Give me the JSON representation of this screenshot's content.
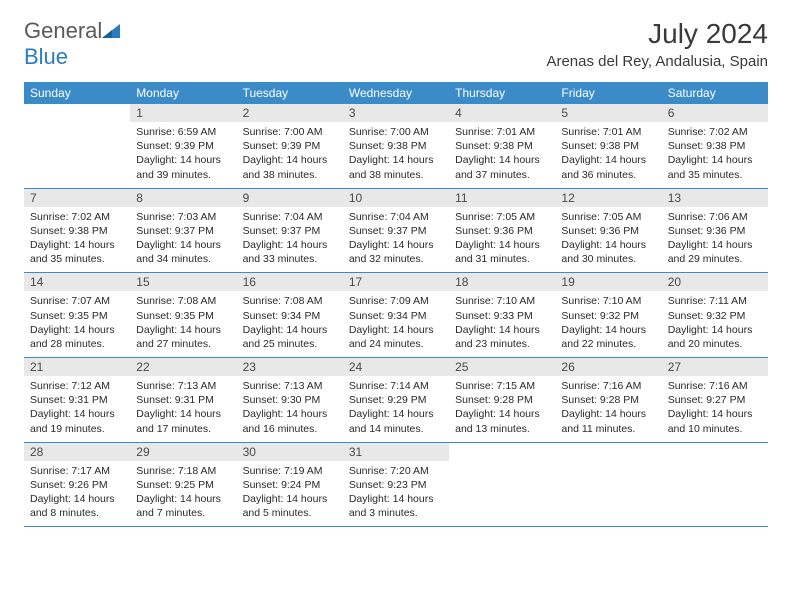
{
  "logo": {
    "general": "General",
    "blue": "Blue"
  },
  "title": "July 2024",
  "location": "Arenas del Rey, Andalusia, Spain",
  "colors": {
    "header_bg": "#3b8bc9",
    "header_fg": "#ffffff",
    "daynum_bg": "#e8e8e8",
    "daynum_fg": "#4a4a4a",
    "text": "#2a2a2a",
    "border": "#3b8bc9",
    "logo_general": "#5a5a5a",
    "logo_blue": "#2b7bbf",
    "title_color": "#3a3a3a",
    "background": "#ffffff"
  },
  "typography": {
    "title_fontsize": 28,
    "location_fontsize": 15,
    "weekday_fontsize": 12,
    "daynum_fontsize": 12,
    "body_fontsize": 10.5
  },
  "weekdays": [
    "Sunday",
    "Monday",
    "Tuesday",
    "Wednesday",
    "Thursday",
    "Friday",
    "Saturday"
  ],
  "grid": [
    [
      null,
      {
        "n": "1",
        "sr": "6:59 AM",
        "ss": "9:39 PM",
        "dl": "14 hours and 39 minutes."
      },
      {
        "n": "2",
        "sr": "7:00 AM",
        "ss": "9:39 PM",
        "dl": "14 hours and 38 minutes."
      },
      {
        "n": "3",
        "sr": "7:00 AM",
        "ss": "9:38 PM",
        "dl": "14 hours and 38 minutes."
      },
      {
        "n": "4",
        "sr": "7:01 AM",
        "ss": "9:38 PM",
        "dl": "14 hours and 37 minutes."
      },
      {
        "n": "5",
        "sr": "7:01 AM",
        "ss": "9:38 PM",
        "dl": "14 hours and 36 minutes."
      },
      {
        "n": "6",
        "sr": "7:02 AM",
        "ss": "9:38 PM",
        "dl": "14 hours and 35 minutes."
      }
    ],
    [
      {
        "n": "7",
        "sr": "7:02 AM",
        "ss": "9:38 PM",
        "dl": "14 hours and 35 minutes."
      },
      {
        "n": "8",
        "sr": "7:03 AM",
        "ss": "9:37 PM",
        "dl": "14 hours and 34 minutes."
      },
      {
        "n": "9",
        "sr": "7:04 AM",
        "ss": "9:37 PM",
        "dl": "14 hours and 33 minutes."
      },
      {
        "n": "10",
        "sr": "7:04 AM",
        "ss": "9:37 PM",
        "dl": "14 hours and 32 minutes."
      },
      {
        "n": "11",
        "sr": "7:05 AM",
        "ss": "9:36 PM",
        "dl": "14 hours and 31 minutes."
      },
      {
        "n": "12",
        "sr": "7:05 AM",
        "ss": "9:36 PM",
        "dl": "14 hours and 30 minutes."
      },
      {
        "n": "13",
        "sr": "7:06 AM",
        "ss": "9:36 PM",
        "dl": "14 hours and 29 minutes."
      }
    ],
    [
      {
        "n": "14",
        "sr": "7:07 AM",
        "ss": "9:35 PM",
        "dl": "14 hours and 28 minutes."
      },
      {
        "n": "15",
        "sr": "7:08 AM",
        "ss": "9:35 PM",
        "dl": "14 hours and 27 minutes."
      },
      {
        "n": "16",
        "sr": "7:08 AM",
        "ss": "9:34 PM",
        "dl": "14 hours and 25 minutes."
      },
      {
        "n": "17",
        "sr": "7:09 AM",
        "ss": "9:34 PM",
        "dl": "14 hours and 24 minutes."
      },
      {
        "n": "18",
        "sr": "7:10 AM",
        "ss": "9:33 PM",
        "dl": "14 hours and 23 minutes."
      },
      {
        "n": "19",
        "sr": "7:10 AM",
        "ss": "9:32 PM",
        "dl": "14 hours and 22 minutes."
      },
      {
        "n": "20",
        "sr": "7:11 AM",
        "ss": "9:32 PM",
        "dl": "14 hours and 20 minutes."
      }
    ],
    [
      {
        "n": "21",
        "sr": "7:12 AM",
        "ss": "9:31 PM",
        "dl": "14 hours and 19 minutes."
      },
      {
        "n": "22",
        "sr": "7:13 AM",
        "ss": "9:31 PM",
        "dl": "14 hours and 17 minutes."
      },
      {
        "n": "23",
        "sr": "7:13 AM",
        "ss": "9:30 PM",
        "dl": "14 hours and 16 minutes."
      },
      {
        "n": "24",
        "sr": "7:14 AM",
        "ss": "9:29 PM",
        "dl": "14 hours and 14 minutes."
      },
      {
        "n": "25",
        "sr": "7:15 AM",
        "ss": "9:28 PM",
        "dl": "14 hours and 13 minutes."
      },
      {
        "n": "26",
        "sr": "7:16 AM",
        "ss": "9:28 PM",
        "dl": "14 hours and 11 minutes."
      },
      {
        "n": "27",
        "sr": "7:16 AM",
        "ss": "9:27 PM",
        "dl": "14 hours and 10 minutes."
      }
    ],
    [
      {
        "n": "28",
        "sr": "7:17 AM",
        "ss": "9:26 PM",
        "dl": "14 hours and 8 minutes."
      },
      {
        "n": "29",
        "sr": "7:18 AM",
        "ss": "9:25 PM",
        "dl": "14 hours and 7 minutes."
      },
      {
        "n": "30",
        "sr": "7:19 AM",
        "ss": "9:24 PM",
        "dl": "14 hours and 5 minutes."
      },
      {
        "n": "31",
        "sr": "7:20 AM",
        "ss": "9:23 PM",
        "dl": "14 hours and 3 minutes."
      },
      null,
      null,
      null
    ]
  ],
  "labels": {
    "sunrise": "Sunrise:",
    "sunset": "Sunset:",
    "daylight": "Daylight:"
  }
}
